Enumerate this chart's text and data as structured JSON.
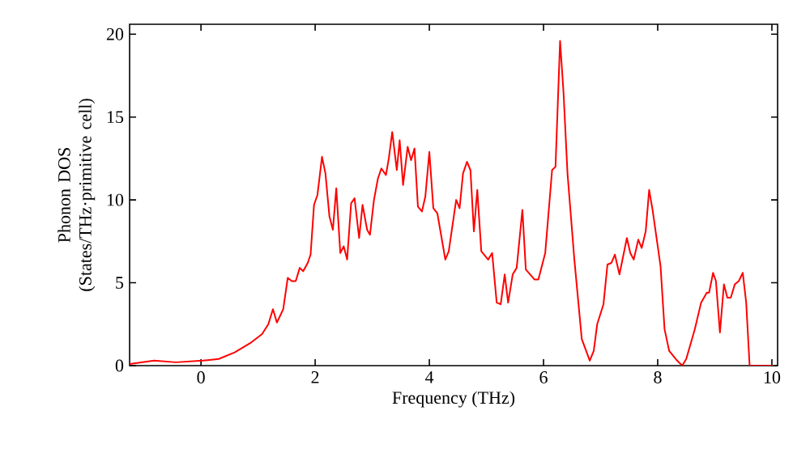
{
  "chart_data": {
    "type": "line",
    "xlabel": "Frequency (THz)",
    "ylabel": "Phonon DOS (States/THz·primitive cell)",
    "xlim": [
      -1.25,
      10.1
    ],
    "ylim": [
      0,
      20.6
    ],
    "xticks": [
      0,
      2,
      4,
      6,
      8,
      10
    ],
    "yticks": [
      0,
      5,
      10,
      15,
      20
    ],
    "grid": false,
    "marker": "none",
    "line_style": "solid",
    "x": [
      -1.25,
      -0.82,
      -0.44,
      0.03,
      0.31,
      0.59,
      0.88,
      1.07,
      1.18,
      1.26,
      1.33,
      1.44,
      1.52,
      1.59,
      1.66,
      1.73,
      1.79,
      1.87,
      1.92,
      1.98,
      2.04,
      2.12,
      2.18,
      2.25,
      2.31,
      2.37,
      2.44,
      2.5,
      2.56,
      2.63,
      2.69,
      2.77,
      2.83,
      2.91,
      2.96,
      3.03,
      3.1,
      3.16,
      3.24,
      3.29,
      3.35,
      3.43,
      3.48,
      3.54,
      3.62,
      3.68,
      3.74,
      3.8,
      3.87,
      3.93,
      4.0,
      4.07,
      4.14,
      4.28,
      4.34,
      4.47,
      4.53,
      4.59,
      4.66,
      4.72,
      4.78,
      4.84,
      4.91,
      5.03,
      5.1,
      5.18,
      5.25,
      5.32,
      5.38,
      5.46,
      5.53,
      5.63,
      5.69,
      5.84,
      5.91,
      6.03,
      6.15,
      6.21,
      6.29,
      6.35,
      6.42,
      6.54,
      6.67,
      6.81,
      6.88,
      6.94,
      7.05,
      7.12,
      7.19,
      7.25,
      7.33,
      7.46,
      7.52,
      7.58,
      7.66,
      7.72,
      7.79,
      7.85,
      7.91,
      8.05,
      8.12,
      8.2,
      8.34,
      8.43,
      8.5,
      8.65,
      8.76,
      8.86,
      8.9,
      8.97,
      9.02,
      9.09,
      9.16,
      9.22,
      9.28,
      9.35,
      9.42,
      9.49,
      9.55,
      9.61,
      10.03
    ],
    "series": [
      {
        "color": "#ff0000",
        "values": [
          0.1,
          0.3,
          0.2,
          0.3,
          0.4,
          0.8,
          1.4,
          1.9,
          2.5,
          3.4,
          2.6,
          3.4,
          5.3,
          5.1,
          5.1,
          5.9,
          5.7,
          6.2,
          6.7,
          9.7,
          10.3,
          12.6,
          11.6,
          9.0,
          8.2,
          10.7,
          6.8,
          7.2,
          6.4,
          9.8,
          10.1,
          7.7,
          9.7,
          8.2,
          7.9,
          10.0,
          11.3,
          11.9,
          11.5,
          12.5,
          14.1,
          11.8,
          13.6,
          10.9,
          13.2,
          12.4,
          13.1,
          9.6,
          9.3,
          10.2,
          12.9,
          9.5,
          9.2,
          6.4,
          6.9,
          10.0,
          9.5,
          11.6,
          12.3,
          11.8,
          8.1,
          10.6,
          6.9,
          6.4,
          6.8,
          3.8,
          3.7,
          5.5,
          3.8,
          5.5,
          5.9,
          9.4,
          5.8,
          5.2,
          5.2,
          6.8,
          11.8,
          12.0,
          19.6,
          16.5,
          11.6,
          6.4,
          1.6,
          0.3,
          0.9,
          2.5,
          3.7,
          6.1,
          6.2,
          6.7,
          5.5,
          7.7,
          6.8,
          6.4,
          7.6,
          7.1,
          8.1,
          10.6,
          9.4,
          6.0,
          2.2,
          0.9,
          0.3,
          0.0,
          0.4,
          2.2,
          3.8,
          4.4,
          4.4,
          5.6,
          5.1,
          2.0,
          4.9,
          4.1,
          4.1,
          4.9,
          5.1,
          5.6,
          3.8,
          0.0,
          0.0
        ]
      }
    ]
  }
}
